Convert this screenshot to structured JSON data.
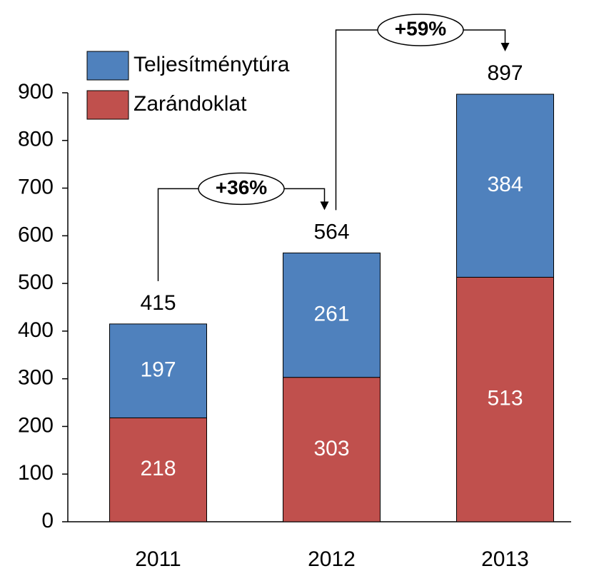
{
  "chart_data": {
    "type": "stacked_bar",
    "categories": [
      "2011",
      "2012",
      "2013"
    ],
    "series": [
      {
        "name": "Zarándoklat",
        "color": "#c0504d",
        "values": [
          218,
          303,
          513
        ]
      },
      {
        "name": "Teljesítménytúra",
        "color": "#4f81bd",
        "values": [
          197,
          261,
          384
        ]
      }
    ],
    "totals": [
      415,
      564,
      897
    ],
    "annotations": [
      "+36%",
      "+59%"
    ],
    "ylim": [
      0,
      900
    ],
    "yticks": [
      0,
      100,
      200,
      300,
      400,
      500,
      600,
      700,
      800,
      900
    ]
  }
}
